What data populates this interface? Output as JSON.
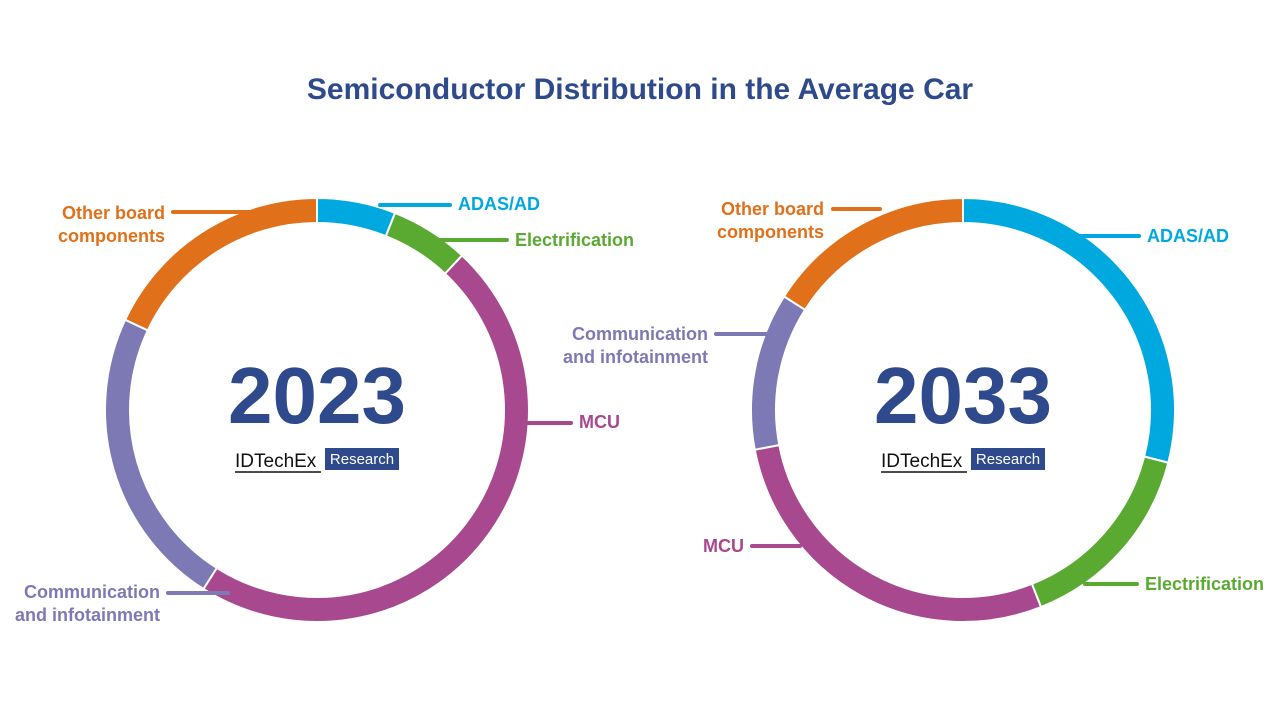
{
  "page_title": "Semiconductor Distribution in the Average Car",
  "colors": {
    "title": "#2e4a8c",
    "year_text": "#2e4a8c",
    "brand_box": "#2e4a8c",
    "divider": "#ffffff"
  },
  "chart_data": [
    {
      "type": "pie",
      "variant": "donut",
      "center_label": "2023",
      "brand": {
        "name": "IDTechEx",
        "tag": "Research"
      },
      "slices": [
        {
          "label": "ADAS/AD",
          "value": 6,
          "color": "#00a8e0"
        },
        {
          "label": "Electrification",
          "value": 6,
          "color": "#5aaa32"
        },
        {
          "label": "MCU",
          "value": 47,
          "color": "#a8488e"
        },
        {
          "label": "Communication and infotainment",
          "value": 23,
          "color": "#7d79b4"
        },
        {
          "label": "Other board components",
          "value": 18,
          "color": "#e0701a"
        }
      ]
    },
    {
      "type": "pie",
      "variant": "donut",
      "center_label": "2033",
      "brand": {
        "name": "IDTechEx",
        "tag": "Research"
      },
      "slices": [
        {
          "label": "ADAS/AD",
          "value": 29,
          "color": "#00a8e0"
        },
        {
          "label": "Electrification",
          "value": 15,
          "color": "#5aaa32"
        },
        {
          "label": "MCU",
          "value": 28,
          "color": "#a8488e"
        },
        {
          "label": "Communication and infotainment",
          "value": 12,
          "color": "#7d79b4"
        },
        {
          "label": "Other board components",
          "value": 16,
          "color": "#e0701a"
        }
      ]
    }
  ]
}
